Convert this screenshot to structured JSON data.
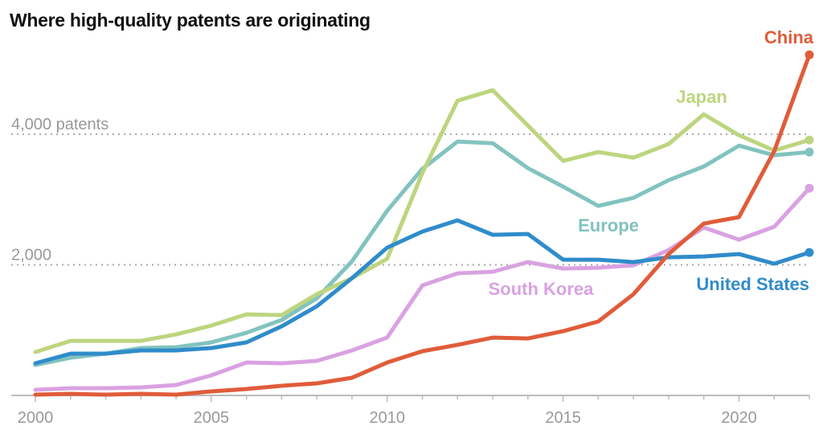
{
  "chart_data": {
    "type": "line",
    "title": "Where high-quality patents are originating",
    "x": [
      2000,
      2001,
      2002,
      2003,
      2004,
      2005,
      2006,
      2007,
      2008,
      2009,
      2010,
      2011,
      2012,
      2013,
      2014,
      2015,
      2016,
      2017,
      2018,
      2019,
      2020,
      2021,
      2022
    ],
    "xlim": [
      2000,
      2022
    ],
    "ylim": [
      0,
      5400
    ],
    "x_ticks": [
      {
        "value": 2000,
        "label": "2000"
      },
      {
        "value": 2005,
        "label": "2005"
      },
      {
        "value": 2010,
        "label": "2010"
      },
      {
        "value": 2015,
        "label": "2015"
      },
      {
        "value": 2020,
        "label": "2020"
      }
    ],
    "y_ticks": [
      {
        "value": 2000,
        "label": "2,000"
      },
      {
        "value": 4000,
        "label": "4,000 patents"
      }
    ],
    "grid": "horizontal dotted",
    "series": [
      {
        "name": "Europe",
        "color": "#82c3bf",
        "values": [
          467,
          578,
          640,
          726,
          738,
          812,
          959,
          1156,
          1488,
          2054,
          2829,
          3469,
          3887,
          3862,
          3481,
          3198,
          2903,
          3026,
          3296,
          3506,
          3825,
          3678,
          3727
        ]
      },
      {
        "name": "Japan",
        "color": "#bdd57f",
        "values": [
          664,
          836,
          836,
          836,
          935,
          1070,
          1242,
          1230,
          1550,
          1796,
          2091,
          3407,
          4514,
          4674,
          4133,
          3592,
          3727,
          3641,
          3850,
          4305,
          3985,
          3751,
          3911
        ]
      },
      {
        "name": "South Korea",
        "color": "#d9a2e1",
        "values": [
          86,
          111,
          111,
          123,
          160,
          308,
          504,
          492,
          529,
          689,
          886,
          1685,
          1870,
          1894,
          2042,
          1943,
          1956,
          1993,
          2226,
          2571,
          2386,
          2583,
          3173
        ]
      },
      {
        "name": "United States",
        "color": "#2f8ccb",
        "values": [
          492,
          640,
          640,
          689,
          689,
          726,
          812,
          1058,
          1365,
          1796,
          2263,
          2509,
          2681,
          2460,
          2472,
          2079,
          2079,
          2042,
          2116,
          2128,
          2165,
          2017,
          2189
        ]
      },
      {
        "name": "China",
        "color": "#e05c3a",
        "values": [
          12,
          25,
          12,
          25,
          12,
          62,
          98,
          148,
          185,
          271,
          504,
          677,
          775,
          886,
          873,
          984,
          1132,
          1550,
          2165,
          2632,
          2731,
          3739,
          5215
        ]
      }
    ]
  }
}
